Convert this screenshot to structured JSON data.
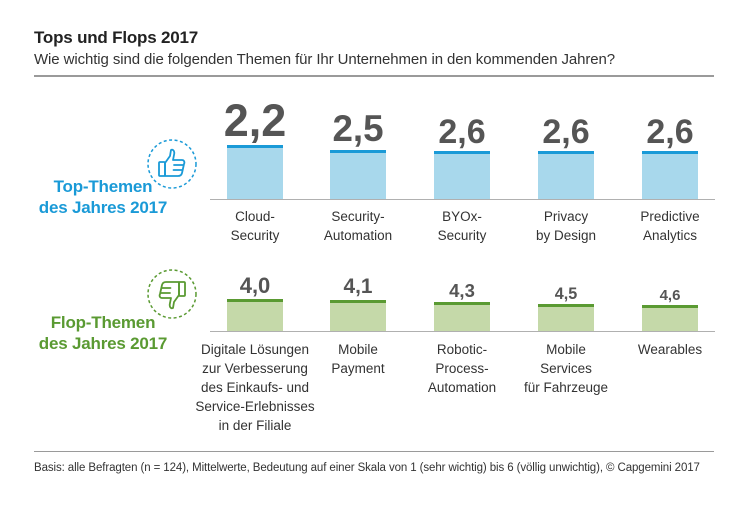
{
  "title": "Tops und Flops 2017",
  "subtitle": "Wie wichtig sind die folgenden Themen für Ihr Unternehmen in den kommenden Jahren?",
  "top_section": {
    "label_line1": "Top-Themen",
    "label_line2": "des Jahres 2017",
    "color": "#1a9ad7",
    "icon": "thumbs-up-icon"
  },
  "flop_section": {
    "label_line1": "Flop-Themen",
    "label_line2": "des Jahres 2017",
    "color": "#5a9a32",
    "icon": "thumbs-down-icon"
  },
  "footnote": "Basis: alle Befragten (n = 124), Mittelwerte, Bedeutung auf einer Skala von 1 (sehr wichtig) bis 6 (völlig unwichtig), © Capgemini 2017",
  "colors": {
    "top_bar": "#a8d8ec",
    "top_cap": "#1a9ad7",
    "flop_bar": "#c5d9a9",
    "flop_cap": "#5a9a32"
  },
  "chart_data": [
    {
      "type": "bar",
      "title": "Top-Themen des Jahres 2017",
      "categories": [
        [
          "Cloud-",
          "Security"
        ],
        [
          "Security-",
          "Automation"
        ],
        [
          "BYOx-",
          "Security"
        ],
        [
          "Privacy",
          "by Design"
        ],
        [
          "Predictive",
          "Analytics"
        ]
      ],
      "values": [
        2.2,
        2.5,
        2.6,
        2.6,
        2.6
      ],
      "value_labels": [
        "2,2",
        "2,5",
        "2,6",
        "2,6",
        "2,6"
      ],
      "scale": [
        1,
        6
      ],
      "xlabel": "",
      "ylabel": ""
    },
    {
      "type": "bar",
      "title": "Flop-Themen des Jahres 2017",
      "categories": [
        [
          "Digitale Lösungen",
          "zur Verbesserung",
          "des Einkaufs- und",
          "Service-Erlebnisses",
          "in der Filiale"
        ],
        [
          "Mobile",
          "Payment"
        ],
        [
          "Robotic-",
          "Process-",
          "Automation"
        ],
        [
          "Mobile",
          "Services",
          "für Fahrzeuge"
        ],
        [
          "Wearables"
        ]
      ],
      "values": [
        4.0,
        4.1,
        4.3,
        4.5,
        4.6
      ],
      "value_labels": [
        "4,0",
        "4,1",
        "4,3",
        "4,5",
        "4,6"
      ],
      "scale": [
        1,
        6
      ],
      "xlabel": "",
      "ylabel": ""
    }
  ]
}
